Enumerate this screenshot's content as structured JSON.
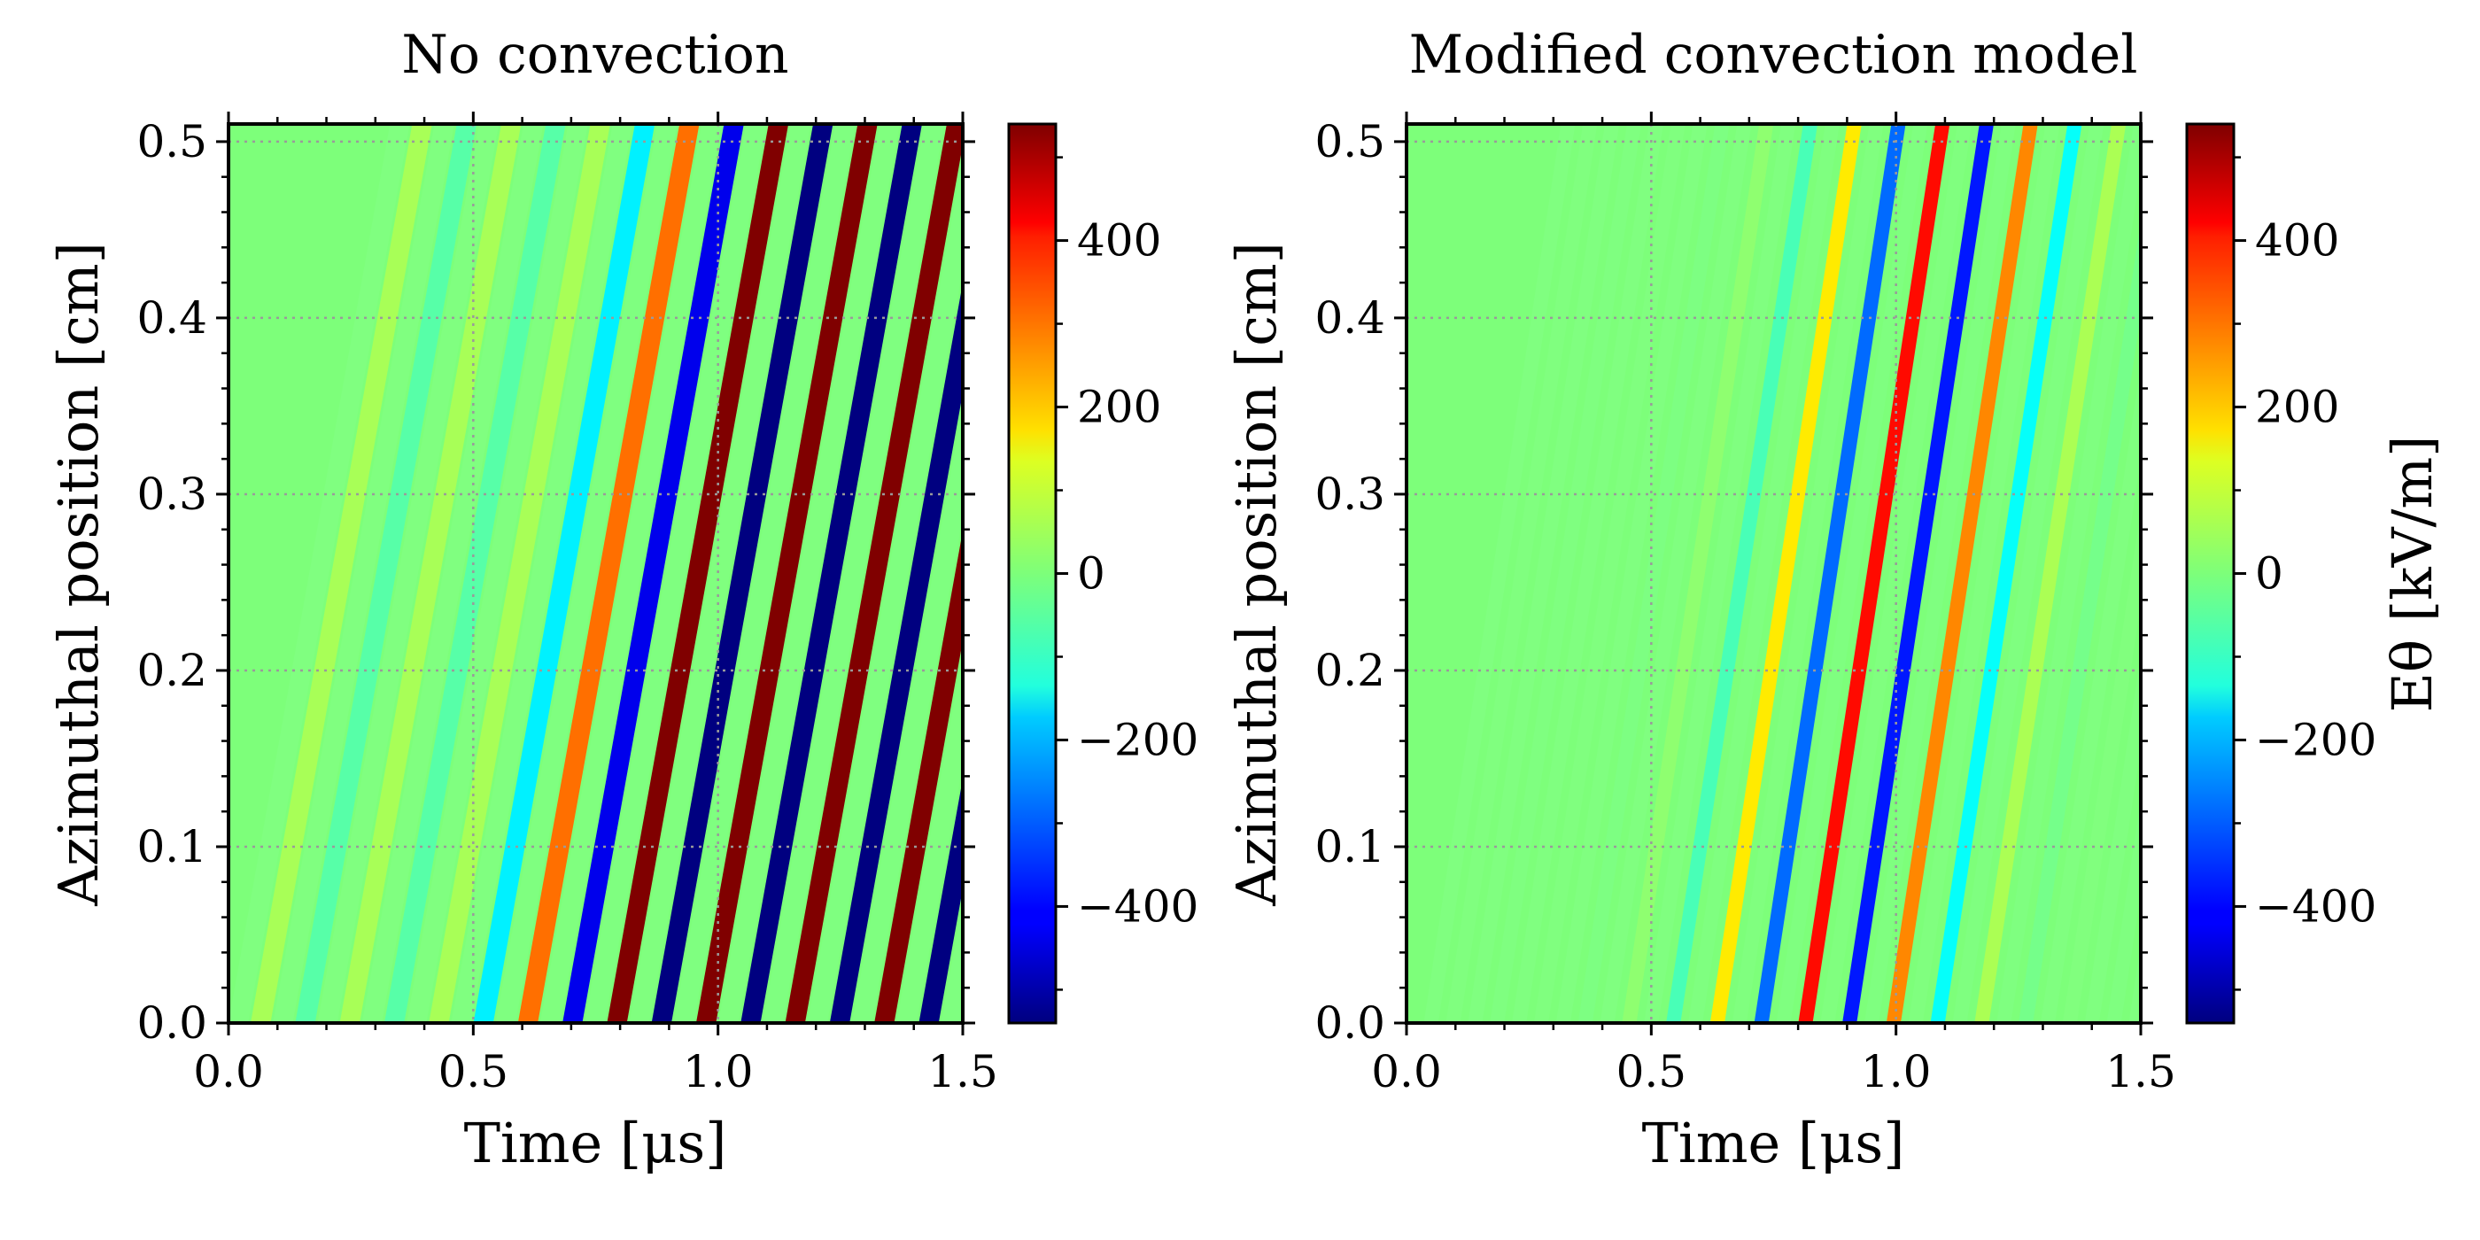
{
  "chart_data": [
    {
      "type": "heatmap",
      "title": "No convection",
      "xlabel": "Time [μs]",
      "ylabel": "Azimuthal position [cm]",
      "xlim": [
        0,
        1.5
      ],
      "ylim": [
        0,
        0.51
      ],
      "x_ticks": [
        "0.0",
        "0.5",
        "1.0",
        "1.5"
      ],
      "y_ticks": [
        "0.0",
        "0.1",
        "0.2",
        "0.3",
        "0.4",
        "0.5"
      ],
      "grid": true,
      "colormap": "jet",
      "colorbar": {
        "range": [
          -540,
          540
        ],
        "ticks": [
          "−400",
          "−200",
          "0",
          "200",
          "400"
        ],
        "label": ""
      },
      "pattern": "diagonal wave stripes, weak before 0.7 μs, strong saturated oscillation (~±540 kV/m) from 0.8 to 1.5 μs"
    },
    {
      "type": "heatmap",
      "title": "Modified convection model",
      "xlabel": "Time [μs]",
      "ylabel": "Azimuthal position [cm]",
      "xlim": [
        0,
        1.5
      ],
      "ylim": [
        0,
        0.51
      ],
      "x_ticks": [
        "0.0",
        "0.5",
        "1.0",
        "1.5"
      ],
      "y_ticks": [
        "0.0",
        "0.1",
        "0.2",
        "0.3",
        "0.4",
        "0.5"
      ],
      "grid": true,
      "colormap": "jet",
      "colorbar": {
        "range": [
          -540,
          540
        ],
        "ticks": [
          "−400",
          "−200",
          "0",
          "200",
          "400"
        ],
        "label": "Eθ [kV/m]"
      },
      "pattern": "few diagonal stripes peaking near 0.8–1.0 μs, damped afterwards"
    }
  ]
}
